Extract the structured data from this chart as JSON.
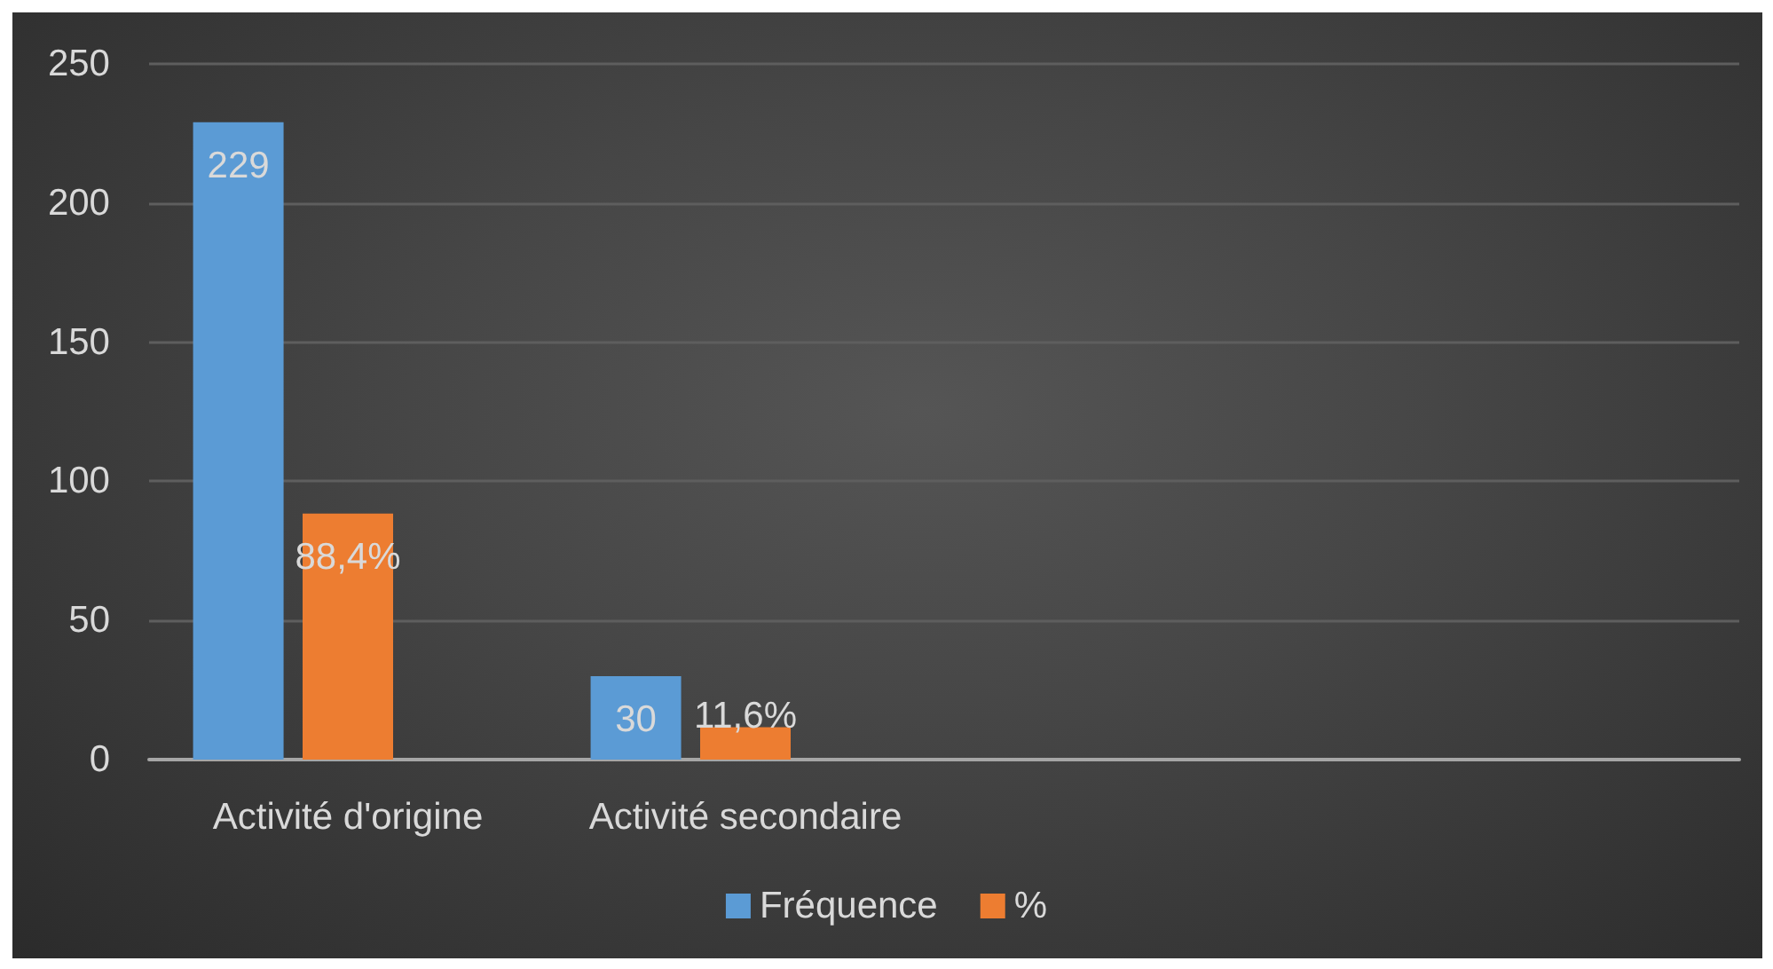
{
  "chart_data": {
    "type": "bar",
    "categories": [
      "Activité d'origine",
      "Activité secondaire",
      null,
      null
    ],
    "series": [
      {
        "name": "Fréquence",
        "color": "#5b9bd5",
        "values": [
          229,
          30,
          null,
          null
        ],
        "value_labels": [
          "229",
          "30",
          null,
          null
        ]
      },
      {
        "name": "%",
        "color": "#ed7d31",
        "values": [
          88.4,
          11.6,
          null,
          null
        ],
        "value_labels": [
          "88,4%",
          "11,6%",
          null,
          null
        ]
      }
    ],
    "ylim": [
      0,
      250
    ],
    "yticks": [
      0,
      50,
      100,
      150,
      200,
      250
    ],
    "grid": "y",
    "legend": "bottom"
  }
}
